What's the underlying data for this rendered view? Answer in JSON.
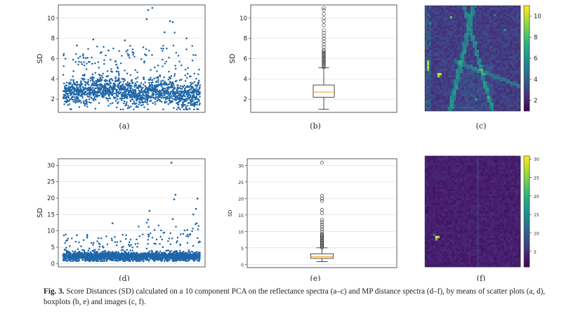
{
  "caption": {
    "label": "Fig. 3.",
    "text": "Score Distances (SD) calculated on a 10 component PCA on the reflectance spectra (a–c) and MP distance spectra (d–f), by means of scatter plots (a, d), boxplots (b, e) and images (c, f)."
  },
  "panel_labels": [
    "(a)",
    "(b)",
    "(c)",
    "(d)",
    "(e)",
    "(f)"
  ],
  "colors": {
    "scatter": "#1f66a8",
    "median": "#f39c12",
    "viridis_low": "#440154",
    "viridis_high": "#fde725"
  },
  "chart_data": [
    {
      "id": "a",
      "type": "scatter",
      "ylabel": "SD",
      "yticks": [
        2,
        4,
        6,
        8,
        10
      ],
      "ylim": [
        0.7,
        11.3
      ],
      "n_points": 1600,
      "y_range": [
        1.0,
        11.0
      ],
      "typical_range": [
        1.5,
        4.0
      ],
      "grid": true
    },
    {
      "id": "b",
      "type": "boxplot",
      "ylabel": "SD",
      "yticks": [
        2,
        4,
        6,
        8,
        10
      ],
      "ylim": [
        0.7,
        11.3
      ],
      "whisker_low": 1.0,
      "q1": 2.2,
      "median": 2.7,
      "q3": 3.4,
      "whisker_high": 5.1,
      "outliers_max": 11.0,
      "grid": true
    },
    {
      "id": "c",
      "type": "heatmap",
      "colormap": "viridis",
      "colorbar_ticks": [
        2,
        4,
        6,
        8,
        10
      ],
      "vmin": 1.0,
      "vmax": 11.0
    },
    {
      "id": "d",
      "type": "scatter",
      "ylabel": "SD",
      "yticks": [
        0,
        5,
        10,
        15,
        20,
        25,
        30
      ],
      "ylim": [
        -1,
        32
      ],
      "n_points": 1800,
      "y_range": [
        0.8,
        30.8
      ],
      "typical_range": [
        1.0,
        4.0
      ],
      "grid": true
    },
    {
      "id": "e",
      "type": "boxplot",
      "ylabel": "SD",
      "yticks": [
        0,
        5,
        10,
        15,
        20,
        25,
        30
      ],
      "ylim": [
        -1,
        32
      ],
      "whisker_low": 0.8,
      "q1": 1.8,
      "median": 2.3,
      "q3": 3.2,
      "whisker_high": 5.0,
      "outliers_max": 30.8,
      "grid": true
    },
    {
      "id": "f",
      "type": "heatmap",
      "colormap": "viridis",
      "colorbar_ticks": [
        5,
        10,
        15,
        20,
        25,
        30
      ],
      "vmin": 0.8,
      "vmax": 30.8
    }
  ]
}
